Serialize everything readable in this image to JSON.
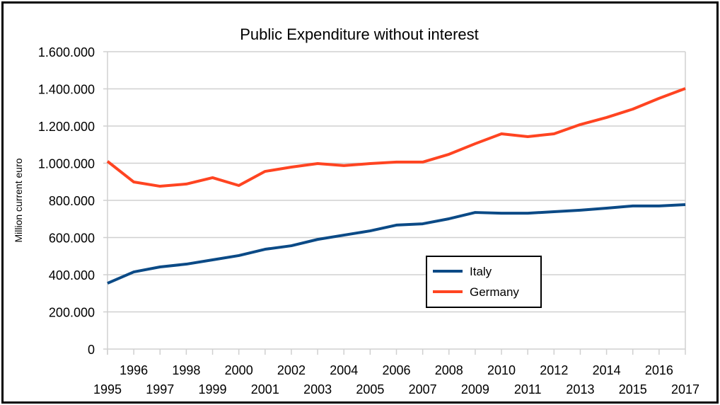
{
  "chart_data": {
    "type": "line",
    "title": "Public Expenditure without interest",
    "xlabel": "",
    "ylabel": "Million current euro",
    "ylim": [
      0,
      1600000
    ],
    "yticks": [
      0,
      200000,
      400000,
      600000,
      800000,
      1000000,
      1200000,
      1400000,
      1600000
    ],
    "ytick_labels": [
      "0",
      "200.000",
      "400.000",
      "600.000",
      "800.000",
      "1.000.000",
      "1.200.000",
      "1.400.000",
      "1.600.000"
    ],
    "x": [
      1995,
      1996,
      1997,
      1998,
      1999,
      2000,
      2001,
      2002,
      2003,
      2004,
      2005,
      2006,
      2007,
      2008,
      2009,
      2010,
      2011,
      2012,
      2013,
      2014,
      2015,
      2016,
      2017
    ],
    "x_labels": [
      "1995",
      "1996",
      "1997",
      "1998",
      "1999",
      "2000",
      "2001",
      "2002",
      "2003",
      "2004",
      "2005",
      "2006",
      "2007",
      "2008",
      "2009",
      "2010",
      "2011",
      "2012",
      "2013",
      "2014",
      "2015",
      "2016",
      "2017"
    ],
    "grid": true,
    "legend_position": "center-right",
    "series": [
      {
        "name": "Italy",
        "color": "#0b4a86",
        "values": [
          354000,
          415000,
          442000,
          457000,
          480000,
          503000,
          537000,
          556000,
          590000,
          613000,
          636000,
          667000,
          674000,
          701000,
          735000,
          731000,
          731000,
          739000,
          747000,
          758000,
          770000,
          770000,
          777000
        ]
      },
      {
        "name": "Germany",
        "color": "#ff4421",
        "values": [
          1010000,
          899000,
          876000,
          888000,
          922000,
          880000,
          956000,
          979000,
          998000,
          987000,
          998000,
          1006000,
          1006000,
          1048000,
          1105000,
          1158000,
          1143000,
          1158000,
          1208000,
          1246000,
          1291000,
          1349000,
          1402000
        ]
      }
    ]
  }
}
